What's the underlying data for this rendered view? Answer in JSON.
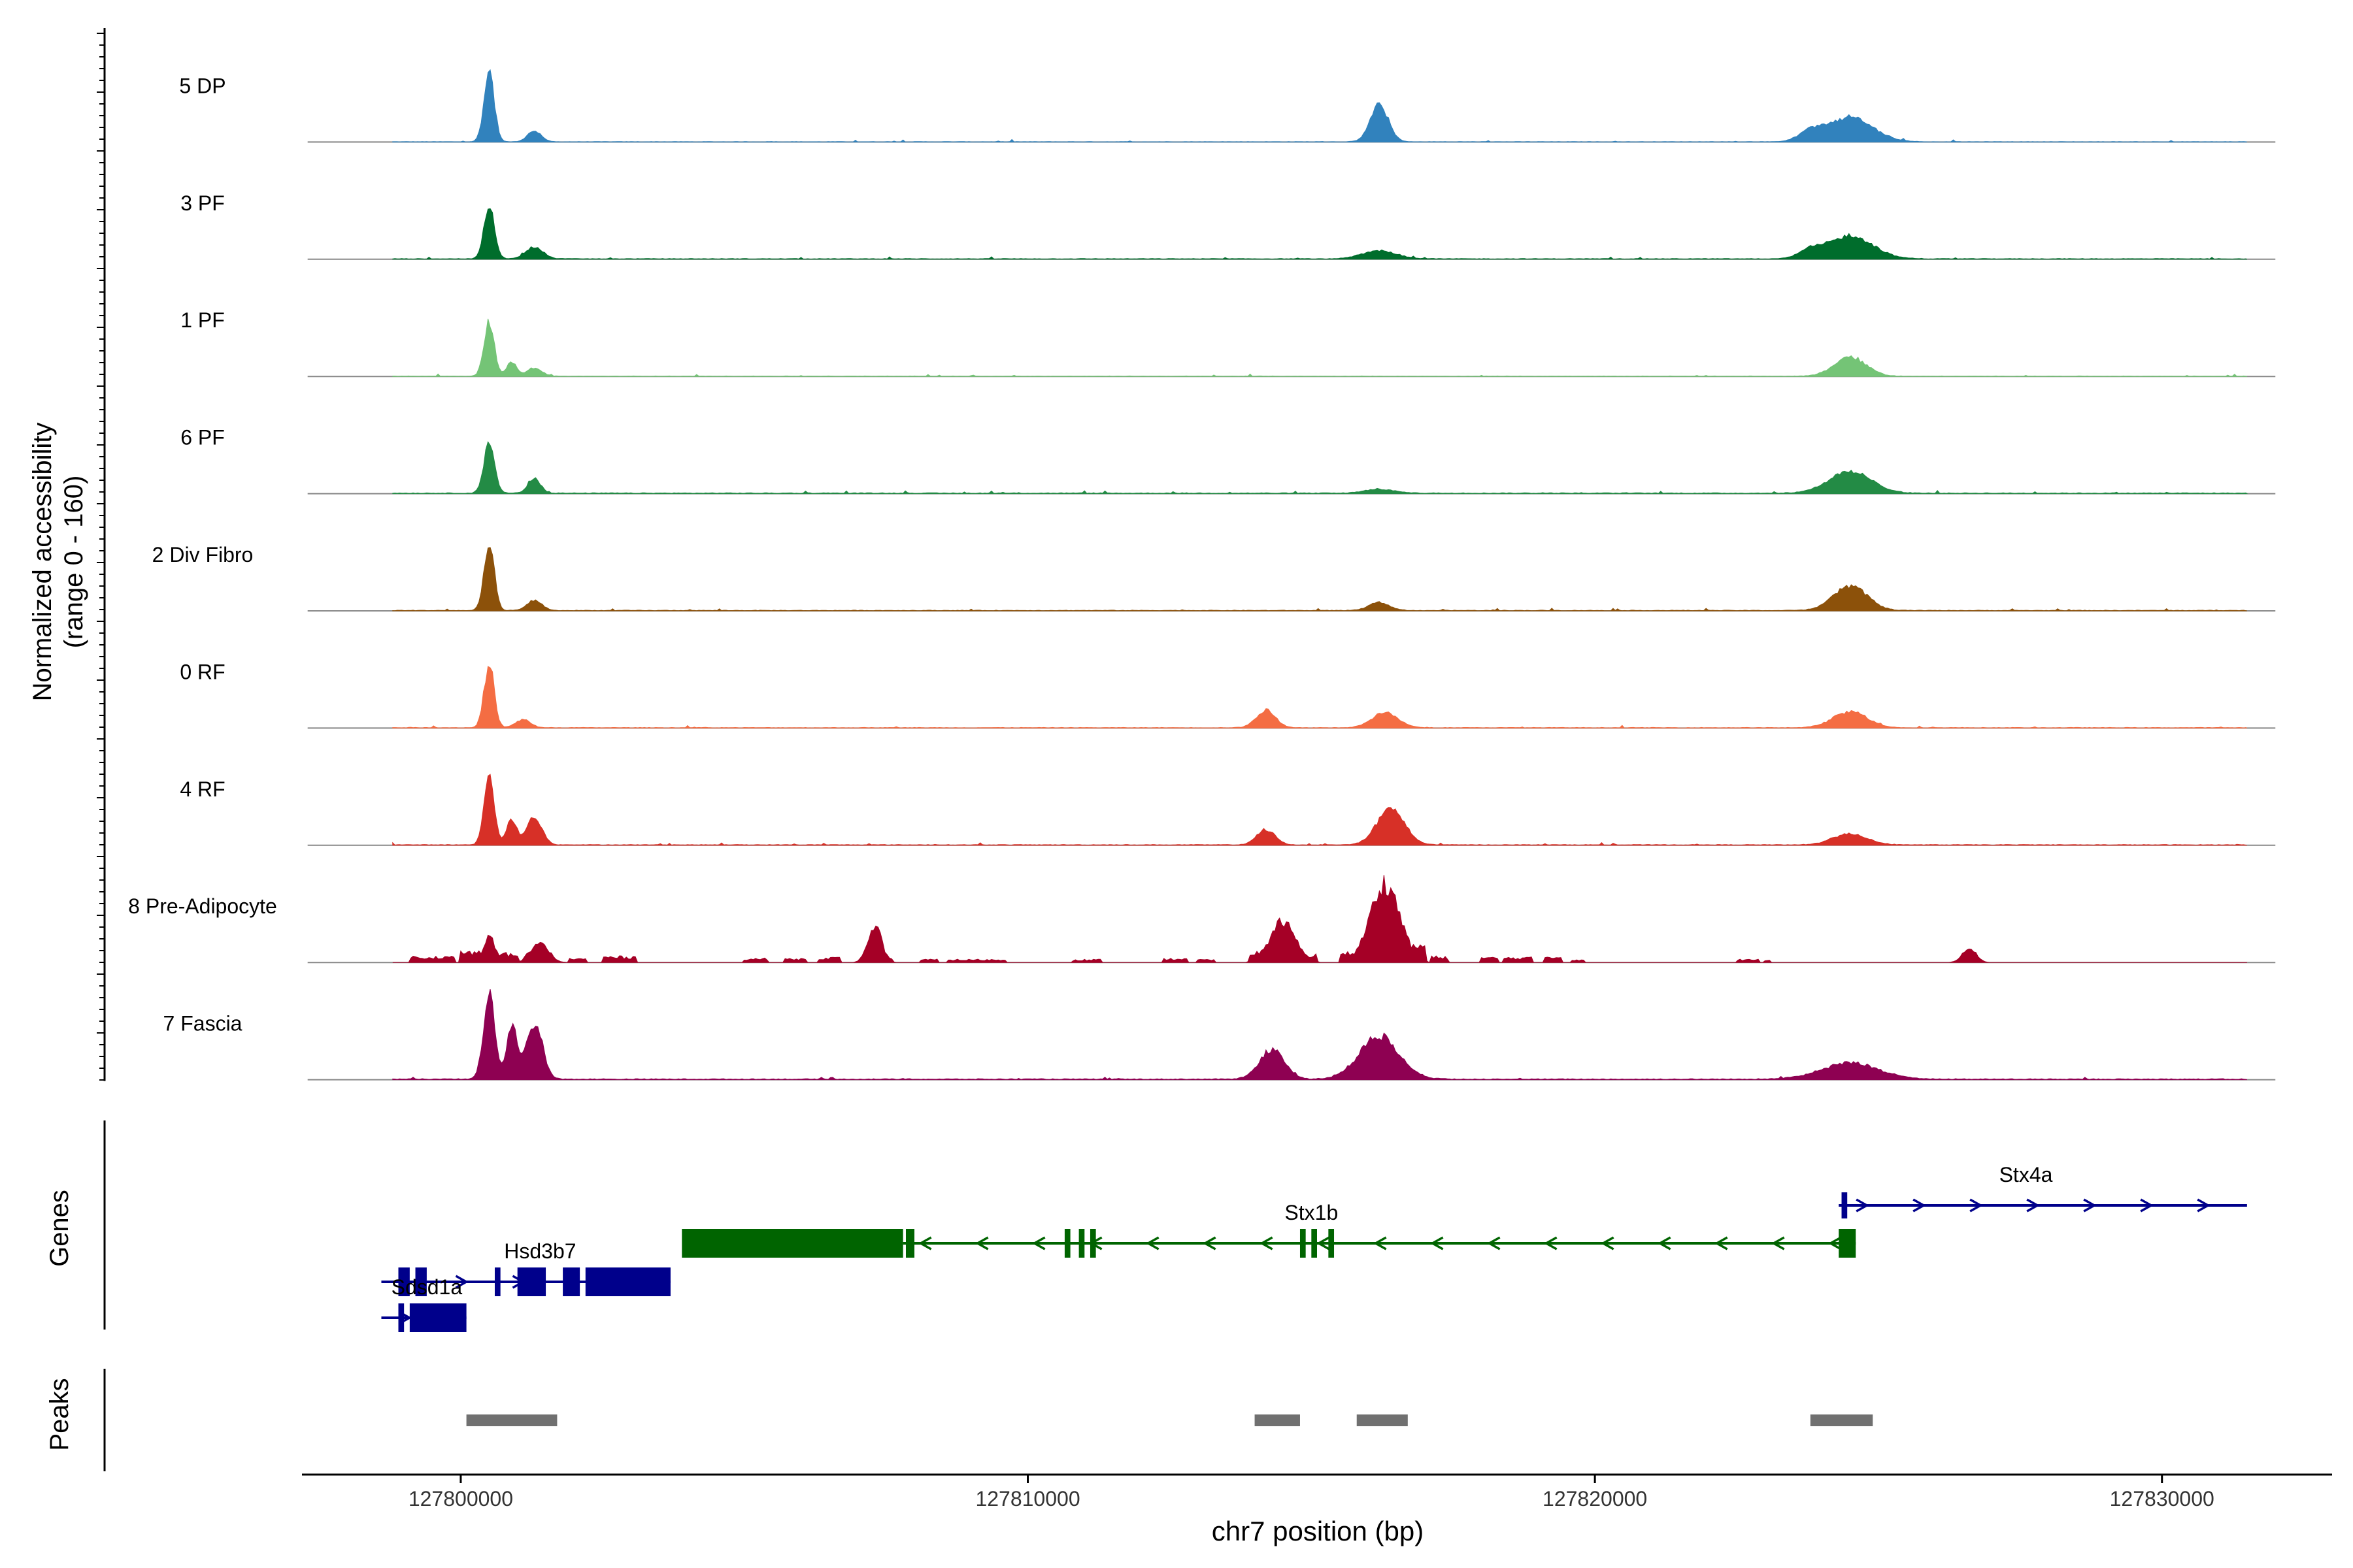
{
  "chart_data": {
    "type": "area",
    "title": "",
    "xlabel": "chr7 position (bp)",
    "xlim": [
      127797200,
      127833000
    ],
    "x_ticks": [
      127800000,
      127810000,
      127820000,
      127830000
    ],
    "x_tick_labels": [
      "127800000",
      "127810000",
      "127820000",
      "127830000"
    ],
    "ylabel_lines": [
      "Normalized accessibility",
      "(range 0 - 160)"
    ],
    "ylim": [
      0,
      160
    ],
    "coverage_range": [
      127798800,
      127831500
    ],
    "tracks": [
      {
        "name": "5 DP",
        "color": "#3182BD",
        "baseline": 0.6,
        "density": 0.55,
        "peaks": [
          [
            127800500,
            140,
            90
          ],
          [
            127801300,
            22,
            120
          ],
          [
            127816200,
            72,
            160
          ],
          [
            127824500,
            48,
            400
          ],
          [
            127823800,
            18,
            200
          ]
        ]
      },
      {
        "name": "3 PF",
        "color": "#006D2C",
        "baseline": 1.0,
        "density": 0.6,
        "peaks": [
          [
            127800500,
            110,
            90
          ],
          [
            127801300,
            24,
            150
          ],
          [
            127816200,
            16,
            300
          ],
          [
            127824500,
            45,
            400
          ],
          [
            127823800,
            15,
            200
          ]
        ]
      },
      {
        "name": "1 PF",
        "color": "#74C476",
        "baseline": 0.7,
        "density": 0.6,
        "peaks": [
          [
            127800500,
            108,
            90
          ],
          [
            127800900,
            28,
            90
          ],
          [
            127801300,
            16,
            130
          ],
          [
            127824500,
            38,
            280
          ]
        ]
      },
      {
        "name": "6 PF",
        "color": "#238B45",
        "baseline": 1.3,
        "density": 0.75,
        "peaks": [
          [
            127800500,
            95,
            95
          ],
          [
            127801300,
            28,
            110
          ],
          [
            127816200,
            8,
            250
          ],
          [
            127824500,
            42,
            380
          ]
        ]
      },
      {
        "name": "2 Div Fibro",
        "color": "#8C510A",
        "baseline": 1.0,
        "density": 0.65,
        "peaks": [
          [
            127800500,
            130,
            90
          ],
          [
            127801300,
            20,
            130
          ],
          [
            127816200,
            16,
            180
          ],
          [
            127824500,
            48,
            300
          ]
        ]
      },
      {
        "name": "0 RF",
        "color": "#F46D43",
        "baseline": 0.9,
        "density": 0.6,
        "peaks": [
          [
            127800500,
            120,
            90
          ],
          [
            127801100,
            16,
            130
          ],
          [
            127814200,
            34,
            170
          ],
          [
            127816300,
            30,
            230
          ],
          [
            127824500,
            32,
            300
          ]
        ]
      },
      {
        "name": "4 RF",
        "color": "#D73027",
        "baseline": 1.1,
        "density": 0.6,
        "peaks": [
          [
            127800500,
            140,
            90
          ],
          [
            127800900,
            50,
            90
          ],
          [
            127801300,
            55,
            130
          ],
          [
            127814200,
            30,
            160
          ],
          [
            127816400,
            72,
            240
          ],
          [
            127824500,
            22,
            300
          ]
        ]
      },
      {
        "name": "8 Pre-Adipocyte",
        "color": "#A50026",
        "baseline": 0.0,
        "density": 0.0,
        "peaks": [
          [
            127800500,
            55,
            100
          ],
          [
            127801400,
            38,
            150
          ],
          [
            127807300,
            75,
            120
          ],
          [
            127814500,
            82,
            220
          ],
          [
            127816300,
            160,
            260
          ],
          [
            127826600,
            30,
            120
          ]
        ]
      },
      {
        "name": "7 Fascia",
        "color": "#8E0152",
        "baseline": 1.4,
        "density": 0.7,
        "peaks": [
          [
            127800500,
            165,
            100
          ],
          [
            127800900,
            105,
            90
          ],
          [
            127801300,
            112,
            140
          ],
          [
            127814300,
            58,
            220
          ],
          [
            127816200,
            85,
            350
          ],
          [
            127824500,
            32,
            500
          ]
        ]
      }
    ],
    "pre_adipocyte_segments": [
      [
        127799100,
        127799900,
        12
      ],
      [
        127800000,
        127800400,
        22
      ],
      [
        127800600,
        127801000,
        18
      ],
      [
        127801100,
        127801600,
        18
      ],
      [
        127801900,
        127802200,
        8
      ],
      [
        127802500,
        127803100,
        12
      ],
      [
        127805000,
        127805400,
        8
      ],
      [
        127805700,
        127806100,
        8
      ],
      [
        127806300,
        127806700,
        10
      ],
      [
        127807100,
        127807600,
        12
      ],
      [
        127808100,
        127808400,
        6
      ],
      [
        127808600,
        127809600,
        6
      ],
      [
        127810800,
        127811300,
        6
      ],
      [
        127812400,
        127812800,
        8
      ],
      [
        127813000,
        127813300,
        6
      ],
      [
        127813900,
        127814500,
        22
      ],
      [
        127814700,
        127815100,
        16
      ],
      [
        127815500,
        127816000,
        20
      ],
      [
        127816600,
        127817000,
        40
      ],
      [
        127817100,
        127817400,
        12
      ],
      [
        127818000,
        127818300,
        10
      ],
      [
        127818400,
        127818900,
        10
      ],
      [
        127819100,
        127819400,
        12
      ],
      [
        127819600,
        127819800,
        6
      ],
      [
        127822500,
        127822900,
        6
      ],
      [
        127823000,
        127823100,
        6
      ]
    ],
    "genes": {
      "label": "Genes",
      "items": [
        {
          "name": "Stx4a",
          "color": "#00008B",
          "strand": "+",
          "row": 0,
          "start": 127824300,
          "end": 127831500,
          "exons": [
            [
              127824350,
              127824450
            ]
          ],
          "label_x": 127827600
        },
        {
          "name": "Stx1b",
          "color": "#006400",
          "strand": "-",
          "row": 1,
          "start": 127807800,
          "end": 127824600,
          "exons": [
            [
              127803900,
              127807800
            ],
            [
              127807850,
              127808000
            ],
            [
              127810650,
              127810750
            ],
            [
              127810900,
              127811000
            ],
            [
              127811100,
              127811200
            ],
            [
              127814800,
              127814900
            ],
            [
              127815000,
              127815100
            ],
            [
              127815300,
              127815400
            ],
            [
              127824300,
              127824600
            ]
          ],
          "label_x": 127815000
        },
        {
          "name": "Hsd3b7",
          "color": "#00008B",
          "strand": "+",
          "row": 2,
          "start": 127798600,
          "end": 127803700,
          "exons": [
            [
              127798900,
              127799100
            ],
            [
              127799200,
              127799400
            ],
            [
              127800600,
              127800700
            ],
            [
              127801000,
              127801500
            ],
            [
              127801800,
              127802100
            ],
            [
              127802200,
              127803700
            ]
          ],
          "label_x": 127801400
        },
        {
          "name": "Sdsd1a",
          "color": "#00008B",
          "strand": "+",
          "row": 3,
          "start": 127798600,
          "end": 127800100,
          "exons": [
            [
              127798900,
              127799000
            ],
            [
              127799100,
              127800100
            ]
          ],
          "label_x": 127799400
        }
      ]
    },
    "peaks": {
      "label": "Peaks",
      "color": "#707070",
      "regions": [
        [
          127800100,
          127801700
        ],
        [
          127814000,
          127814800
        ],
        [
          127815800,
          127816700
        ],
        [
          127823800,
          127824900
        ]
      ]
    }
  }
}
